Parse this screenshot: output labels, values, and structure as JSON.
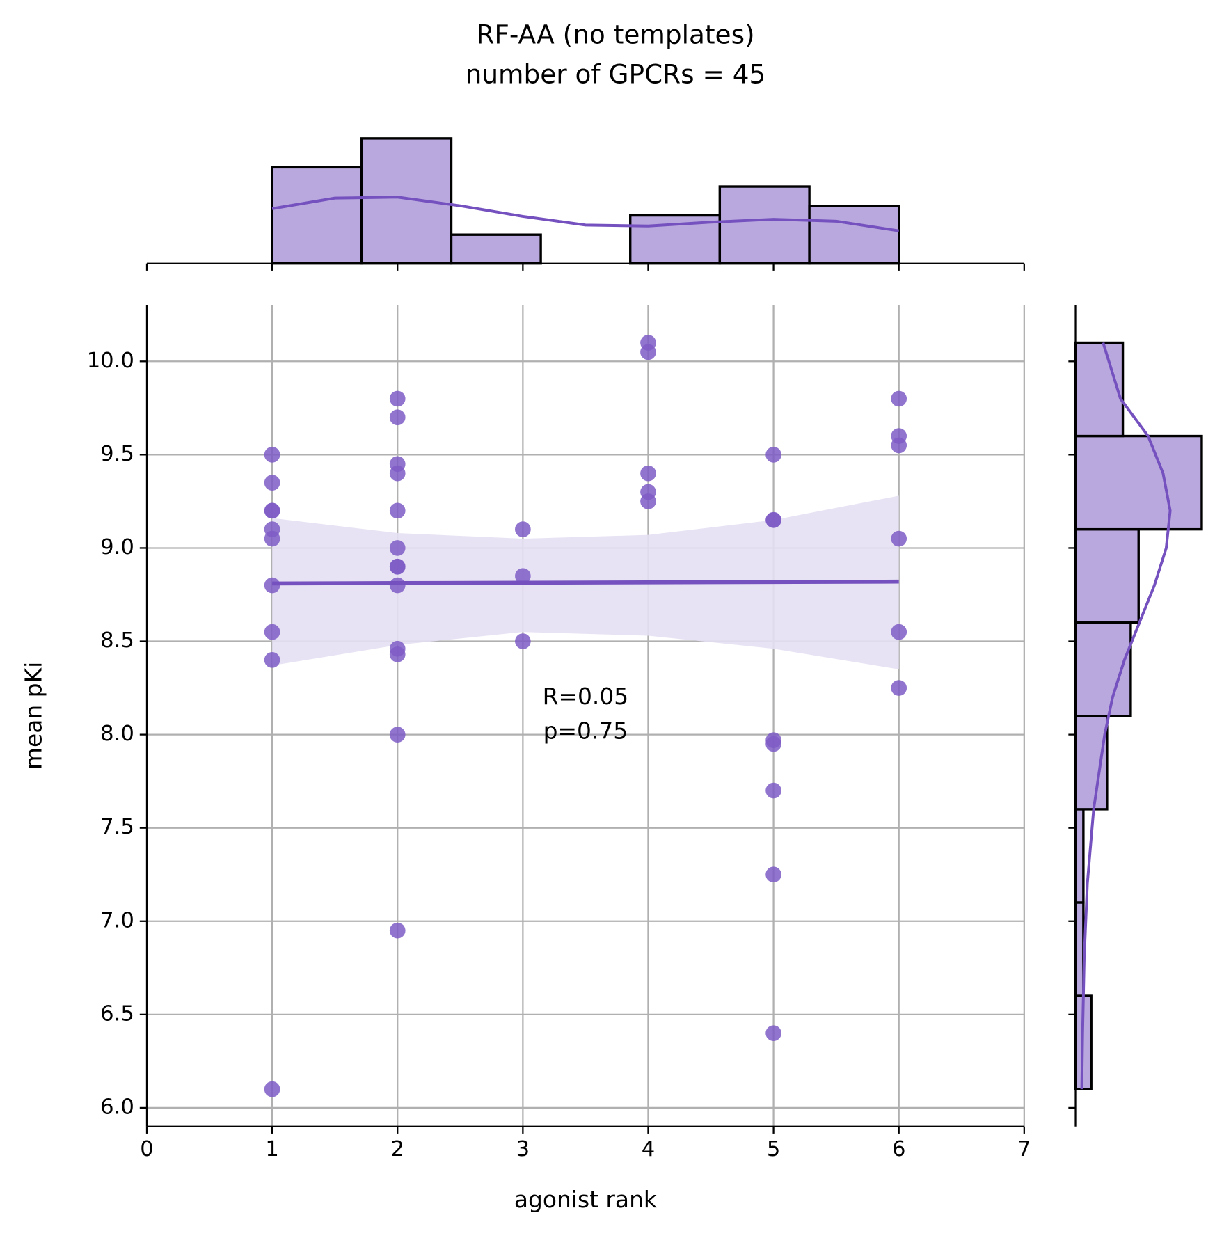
{
  "chart_data": [
    {
      "type": "scatter",
      "title": "RF-AA (no templates)",
      "subtitle": "number of GPCRs = 45",
      "x_label": "agonist rank",
      "y_label": "mean pKi",
      "x": [
        1,
        1,
        1,
        1,
        1,
        1,
        1,
        1,
        1,
        1,
        2,
        2,
        2,
        2,
        2,
        2,
        2,
        2,
        2,
        2,
        2,
        2,
        2,
        3,
        3,
        3,
        4,
        4,
        4,
        4,
        4,
        5,
        5,
        5,
        5,
        5,
        5,
        5,
        5,
        6,
        6,
        6,
        6,
        6,
        6
      ],
      "values": [
        9.5,
        9.35,
        9.2,
        9.2,
        9.1,
        9.05,
        8.8,
        8.55,
        8.4,
        6.1,
        9.8,
        9.7,
        9.45,
        9.4,
        9.2,
        9.0,
        8.9,
        8.9,
        8.8,
        8.46,
        8.43,
        8.0,
        6.95,
        9.1,
        8.85,
        8.5,
        10.1,
        10.05,
        9.4,
        9.3,
        9.25,
        9.5,
        9.15,
        9.15,
        7.97,
        7.95,
        7.7,
        7.25,
        6.4,
        9.8,
        9.6,
        9.55,
        9.05,
        8.55,
        8.25
      ],
      "color": "#7e5cc5",
      "fit": {
        "x": [
          1,
          2,
          3,
          4,
          5,
          6
        ],
        "values": [
          8.81,
          8.812,
          8.814,
          8.816,
          8.818,
          8.82
        ],
        "upper": [
          9.16,
          9.08,
          9.05,
          9.07,
          9.15,
          9.28
        ],
        "lower": [
          8.37,
          8.48,
          8.55,
          8.53,
          8.46,
          8.35
        ],
        "color": "#7451be",
        "band_color": "#e6e0f3"
      },
      "annotation": [
        "R=0.05",
        "p=0.75"
      ],
      "xlim": [
        0,
        7
      ],
      "xticks": [
        0,
        1,
        2,
        3,
        4,
        5,
        6,
        7
      ],
      "ylim": [
        5.9,
        10.3
      ],
      "yticks": [
        {
          "value": 6,
          "label": "6.0"
        },
        6.5,
        {
          "value": 7,
          "label": "7.0"
        },
        7.5,
        {
          "value": 8,
          "label": "8.0"
        },
        8.5,
        {
          "value": 9,
          "label": "9.0"
        },
        9.5,
        {
          "value": 10,
          "label": "10.0"
        }
      ],
      "grid": true
    },
    {
      "type": "histogram",
      "orientation": "vertical",
      "bins": [
        1,
        1.714,
        2.429,
        3.143,
        3.857,
        4.571,
        5.286,
        6
      ],
      "values": [
        10,
        13,
        3,
        0,
        5,
        8,
        6
      ],
      "color": "#b9a8dd",
      "kde": {
        "x": [
          1,
          1.5,
          2,
          2.5,
          3,
          3.5,
          4,
          4.5,
          5,
          5.5,
          6
        ],
        "values": [
          5.7,
          6.8,
          6.9,
          6.0,
          4.9,
          4.0,
          3.9,
          4.3,
          4.6,
          4.4,
          3.4
        ],
        "color": "#7451be"
      },
      "xlim": [
        0,
        7
      ],
      "xticks": [
        0,
        1,
        2,
        3,
        4,
        5,
        6,
        7
      ],
      "ylim": [
        0,
        15
      ]
    },
    {
      "type": "histogram",
      "orientation": "horizontal",
      "bins": [
        6.1,
        6.6,
        7.1,
        7.6,
        8.1,
        8.6,
        9.1,
        9.6,
        10.1
      ],
      "values": [
        2,
        1,
        1,
        4,
        7,
        8,
        16,
        6
      ],
      "color": "#b9a8dd",
      "kde": {
        "y": [
          6.1,
          6.4,
          6.8,
          7.2,
          7.6,
          8.0,
          8.2,
          8.4,
          8.6,
          8.8,
          9.0,
          9.2,
          9.4,
          9.6,
          9.8,
          10.1
        ],
        "values": [
          0.8,
          0.9,
          1.1,
          1.5,
          2.3,
          3.7,
          4.7,
          6.2,
          8.1,
          10.0,
          11.5,
          12.0,
          11.1,
          9.2,
          5.7,
          3.5
        ],
        "color": "#7451be"
      },
      "xlim": [
        0,
        18
      ],
      "ylim": [
        5.9,
        10.3
      ],
      "yticks": [
        6,
        6.5,
        7,
        7.5,
        8,
        8.5,
        9,
        9.5,
        10
      ]
    }
  ]
}
